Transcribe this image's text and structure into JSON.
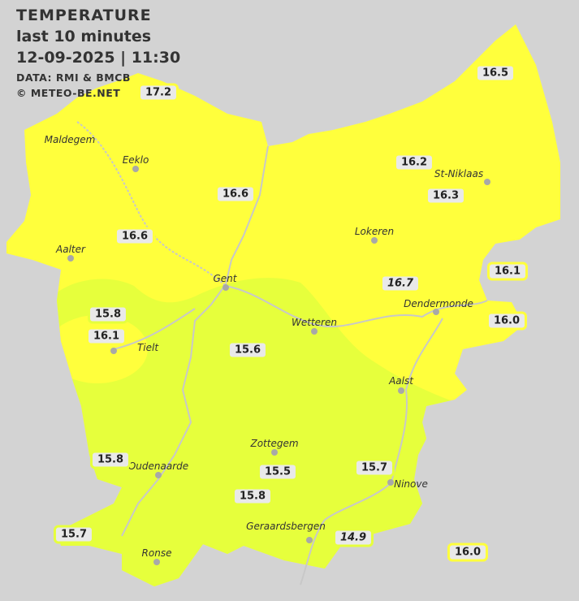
{
  "header": {
    "title": "TEMPERATURE",
    "period": "last 10 minutes",
    "datetime": "12-09-2025  |  11:30",
    "source": "DATA: RMI & BMCB",
    "copyright": "© METEO-BE.NET"
  },
  "colors": {
    "background": "#d3d3d3",
    "zone_warm": "#ffff3c",
    "zone_cool": "#e6ff3c",
    "river": "#c8c8c8",
    "city_dot": "#a8a8a8"
  },
  "cities": [
    "Maldegem",
    "Eeklo",
    "Aalter",
    "Gent",
    "Lokeren",
    "St-Niklaas",
    "Dendermonde",
    "Wetteren",
    "Aalst",
    "Zottegem",
    "Oudenaarde",
    "Ronse",
    "Geraardsbergen",
    "Ninove",
    "Tielt"
  ],
  "stations": [
    {
      "value": "17.2",
      "zone": "warm",
      "italic": false
    },
    {
      "value": "16.5",
      "zone": "warm",
      "italic": false
    },
    {
      "value": "16.2",
      "zone": "warm",
      "italic": false
    },
    {
      "value": "16.3",
      "zone": "warm",
      "italic": false
    },
    {
      "value": "16.6",
      "zone": "warm",
      "italic": false
    },
    {
      "value": "16.6",
      "zone": "warm",
      "italic": false
    },
    {
      "value": "16.1",
      "zone": "warm",
      "italic": false
    },
    {
      "value": "16.7",
      "zone": "warm",
      "italic": true
    },
    {
      "value": "16.0",
      "zone": "warm",
      "italic": false
    },
    {
      "value": "15.8",
      "zone": "cool",
      "italic": false
    },
    {
      "value": "16.1",
      "zone": "warm",
      "italic": false
    },
    {
      "value": "15.6",
      "zone": "cool",
      "italic": false
    },
    {
      "value": "15.8",
      "zone": "cool",
      "italic": false
    },
    {
      "value": "15.5",
      "zone": "cool",
      "italic": false
    },
    {
      "value": "15.7",
      "zone": "cool",
      "italic": false
    },
    {
      "value": "15.8",
      "zone": "cool",
      "italic": false
    },
    {
      "value": "15.7",
      "zone": "cool",
      "italic": false
    },
    {
      "value": "14.9",
      "zone": "cool",
      "italic": true
    },
    {
      "value": "16.0",
      "zone": "warm",
      "italic": false
    }
  ]
}
